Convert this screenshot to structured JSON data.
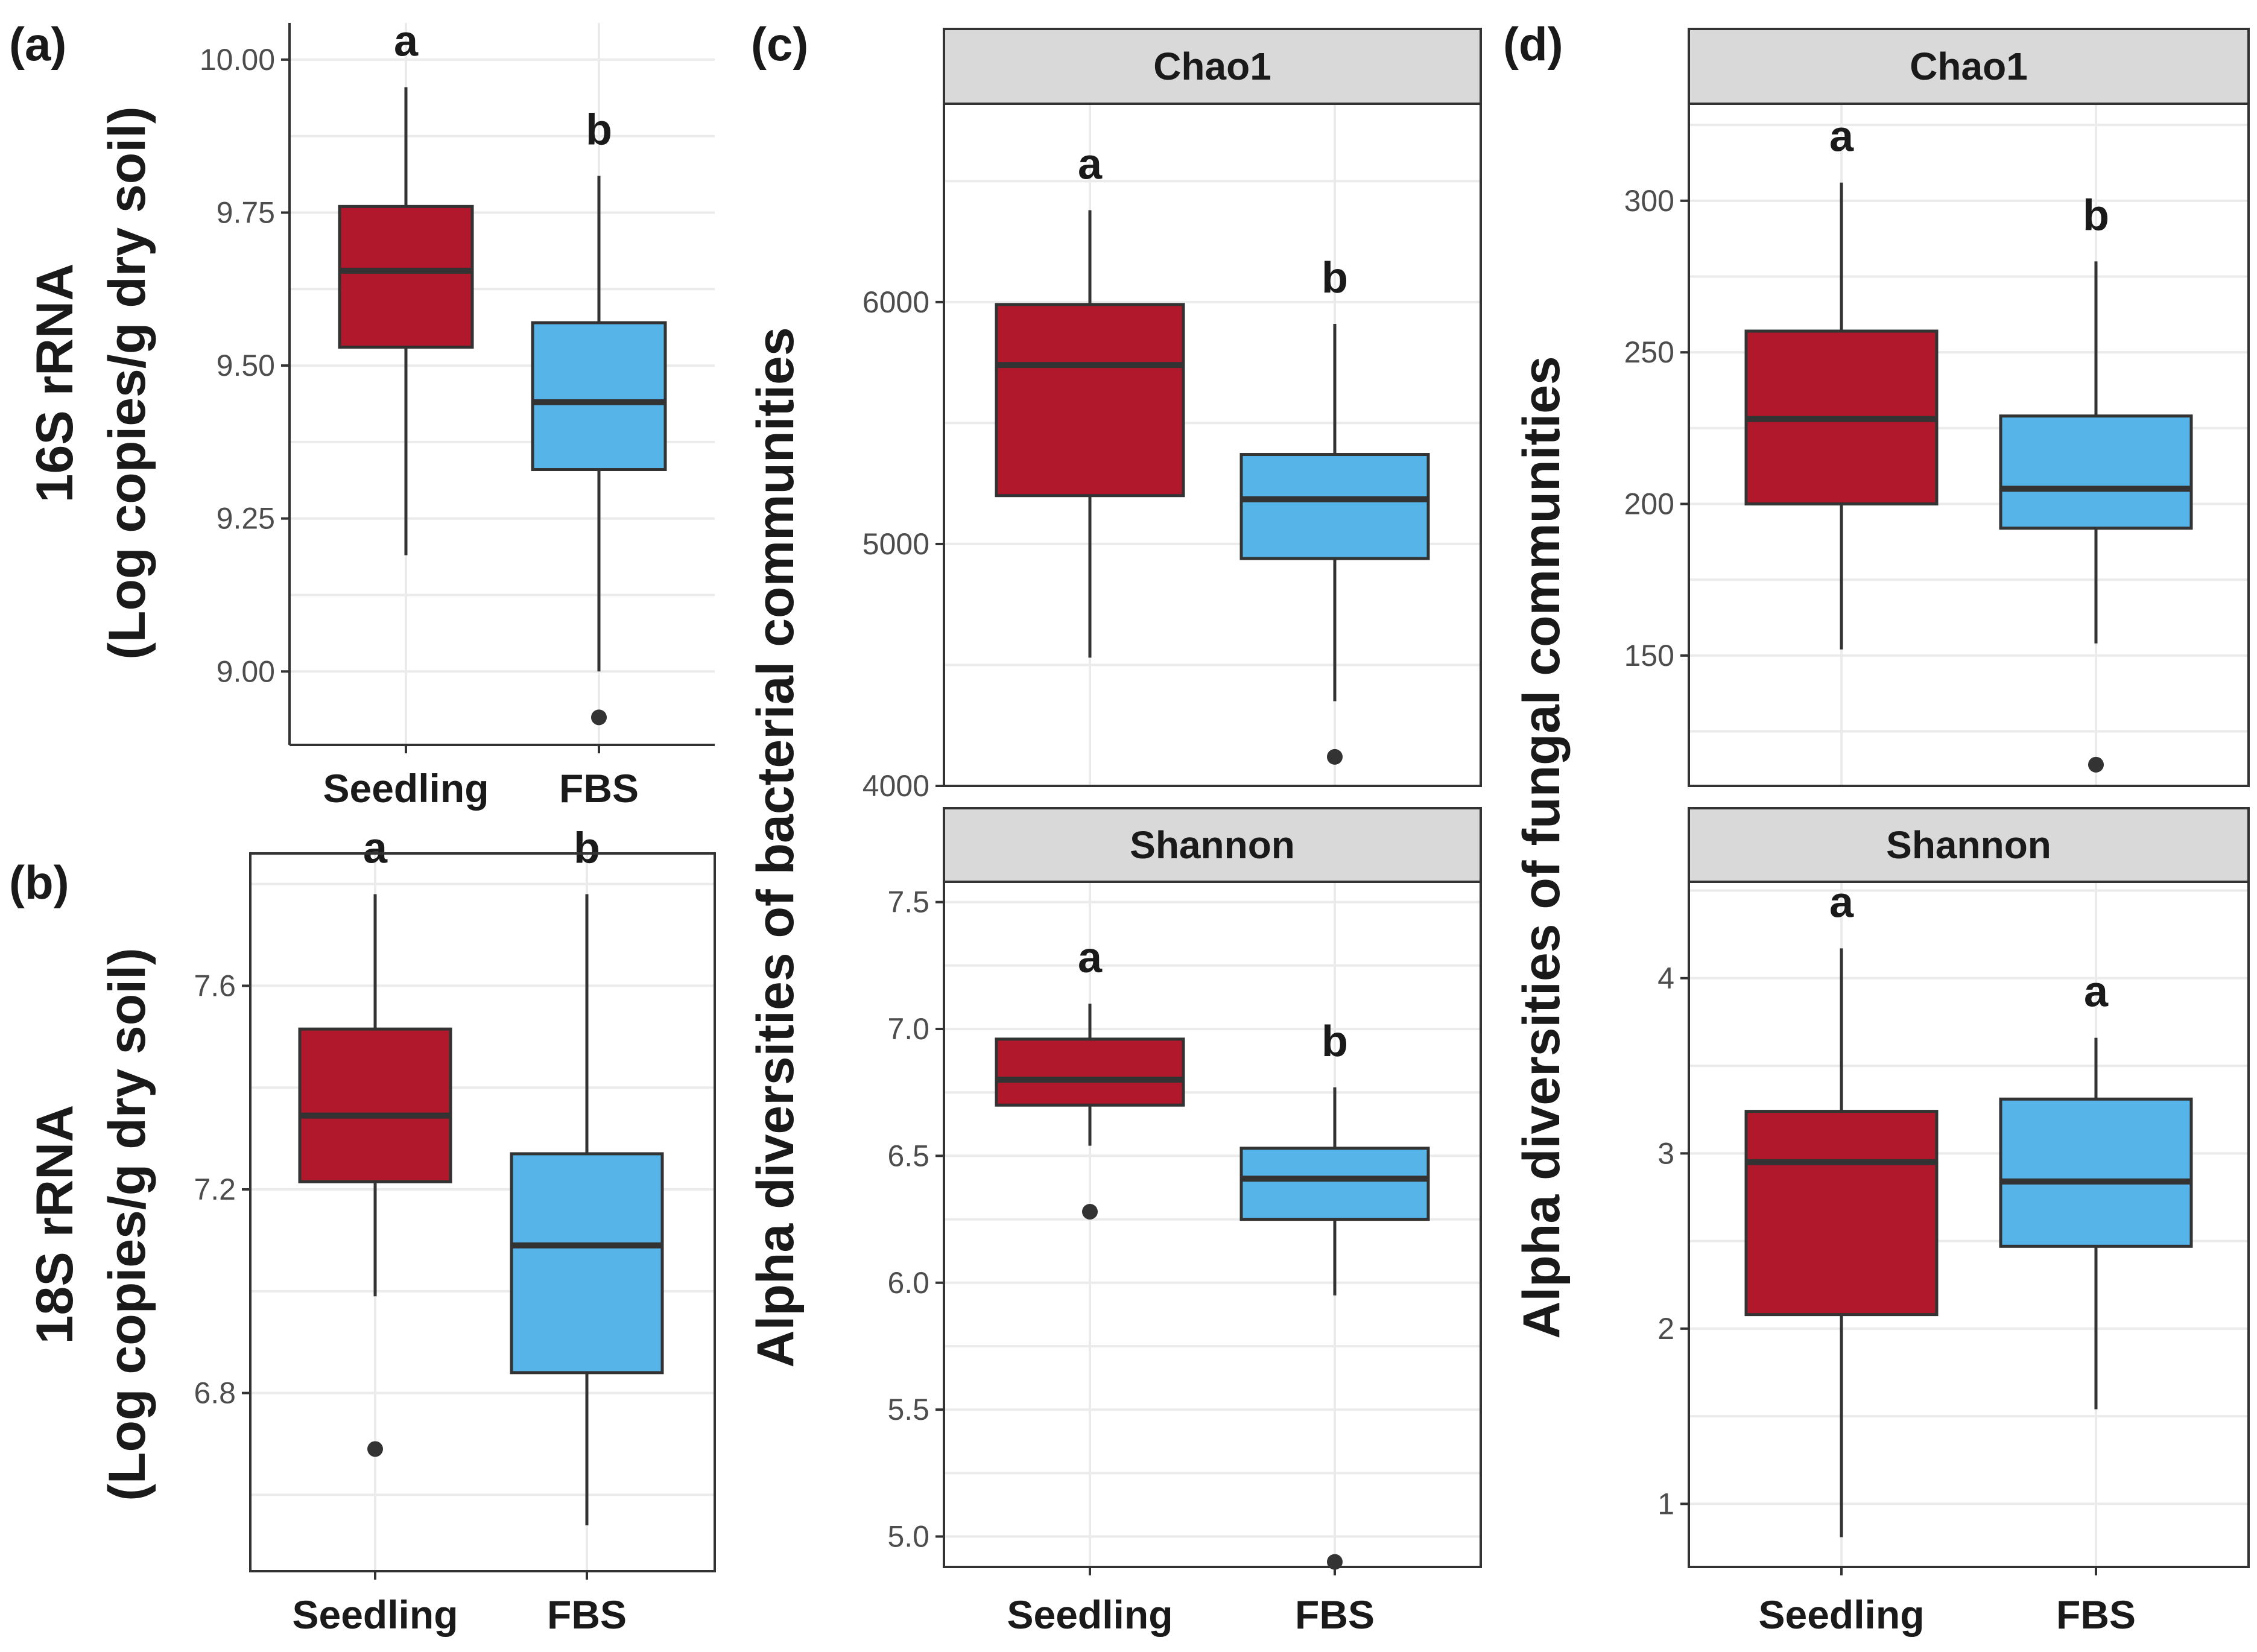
{
  "colors": {
    "seedling": "#B2182B",
    "fbs": "#56B4E9"
  },
  "chart_data": [
    {
      "id": "a",
      "type": "box",
      "panel_label": "(a)",
      "ylabel_line1": "16S rRNA",
      "ylabel_line2": "(Log copies/g dry soil)",
      "categories": [
        "Seedling",
        "FBS"
      ],
      "ylim": [
        8.88,
        10.06
      ],
      "yticks": [
        "9.00",
        "9.25",
        "9.50",
        "9.75",
        "10.00"
      ],
      "boxes": [
        {
          "min": 9.19,
          "q1": 9.53,
          "median": 9.655,
          "q3": 9.76,
          "max": 9.955,
          "outliers": [],
          "letter": "a"
        },
        {
          "min": 9.0,
          "q1": 9.33,
          "median": 9.44,
          "q3": 9.57,
          "max": 9.81,
          "outliers": [
            8.925
          ],
          "letter": "b"
        }
      ]
    },
    {
      "id": "b",
      "type": "box",
      "panel_label": "(b)",
      "ylabel_line1": "18S rRNA",
      "ylabel_line2": "(Log copies/g dry soil)",
      "categories": [
        "Seedling",
        "FBS"
      ],
      "ylim": [
        6.45,
        7.86
      ],
      "yticks": [
        "6.8",
        "7.2",
        "7.6"
      ],
      "boxes": [
        {
          "min": 6.99,
          "q1": 7.215,
          "median": 7.345,
          "q3": 7.515,
          "max": 7.78,
          "outliers": [
            6.69
          ],
          "letter": "a"
        },
        {
          "min": 6.54,
          "q1": 6.84,
          "median": 7.09,
          "q3": 7.27,
          "max": 7.78,
          "outliers": [],
          "letter": "b"
        }
      ]
    },
    {
      "id": "c-chao1",
      "type": "box",
      "panel_label": "(c)",
      "strip": "Chao1",
      "categories": [
        "Seedling",
        "FBS"
      ],
      "ylim": [
        4000,
        6820
      ],
      "yticks": [
        "4000",
        "5000",
        "6000"
      ],
      "boxes": [
        {
          "min": 4530,
          "q1": 5200,
          "median": 5740,
          "q3": 5990,
          "max": 6380,
          "outliers": [],
          "letter": "a"
        },
        {
          "min": 4350,
          "q1": 4940,
          "median": 5185,
          "q3": 5370,
          "max": 5910,
          "outliers": [
            4120
          ],
          "letter": "b"
        }
      ]
    },
    {
      "id": "c-shannon",
      "type": "box",
      "strip": "Shannon",
      "categories": [
        "Seedling",
        "FBS"
      ],
      "ylim": [
        4.88,
        7.58
      ],
      "yticks": [
        "5.0",
        "5.5",
        "6.0",
        "6.5",
        "7.0",
        "7.5"
      ],
      "boxes": [
        {
          "min": 6.54,
          "q1": 6.7,
          "median": 6.8,
          "q3": 6.96,
          "max": 7.1,
          "outliers": [
            6.28
          ],
          "letter": "a"
        },
        {
          "min": 5.95,
          "q1": 6.25,
          "median": 6.41,
          "q3": 6.53,
          "max": 6.77,
          "outliers": [
            4.9
          ],
          "letter": "b"
        }
      ]
    },
    {
      "id": "d-chao1",
      "type": "box",
      "panel_label": "(d)",
      "strip": "Chao1",
      "categories": [
        "Seedling",
        "FBS"
      ],
      "ylim": [
        107,
        332
      ],
      "yticks": [
        "150",
        "200",
        "250",
        "300"
      ],
      "boxes": [
        {
          "min": 152,
          "q1": 200,
          "median": 228,
          "q3": 257,
          "max": 306,
          "outliers": [],
          "letter": "a"
        },
        {
          "min": 154,
          "q1": 192,
          "median": 205,
          "q3": 229,
          "max": 280,
          "outliers": [
            114
          ],
          "letter": "b"
        }
      ]
    },
    {
      "id": "d-shannon",
      "type": "box",
      "strip": "Shannon",
      "categories": [
        "Seedling",
        "FBS"
      ],
      "ylim": [
        0.64,
        4.55
      ],
      "yticks": [
        "1",
        "2",
        "3",
        "4"
      ],
      "boxes": [
        {
          "min": 0.81,
          "q1": 2.08,
          "median": 2.95,
          "q3": 3.24,
          "max": 4.17,
          "outliers": [],
          "letter": "a"
        },
        {
          "min": 1.54,
          "q1": 2.47,
          "median": 2.84,
          "q3": 3.31,
          "max": 3.66,
          "outliers": [],
          "letter": "a"
        }
      ]
    }
  ],
  "shared": {
    "c_ylabel": "Alpha diversities of bacterial communities",
    "d_ylabel": "Alpha diversities of fungal communities"
  }
}
